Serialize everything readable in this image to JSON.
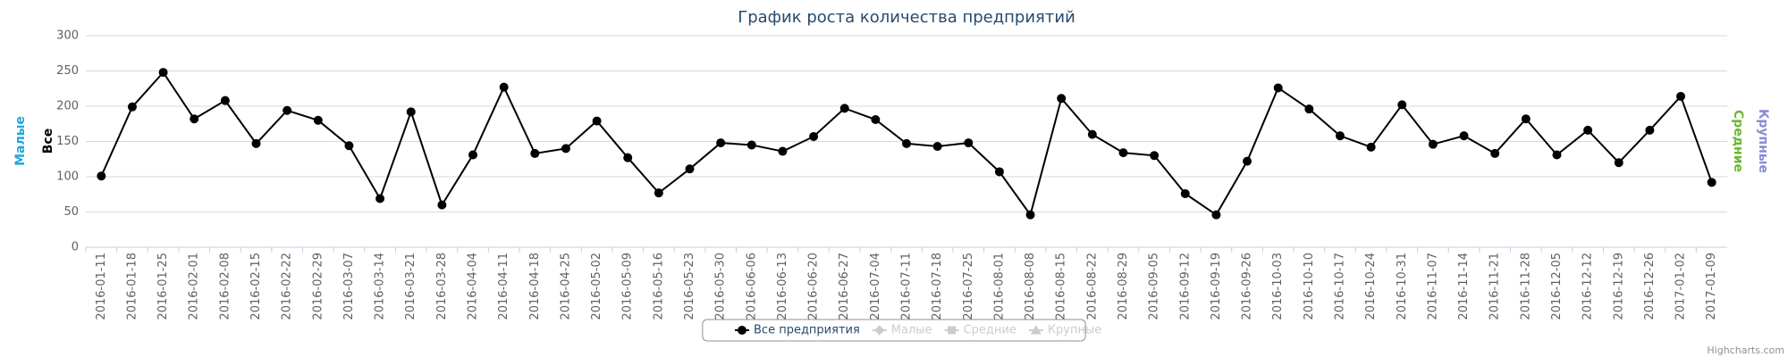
{
  "chart_data": {
    "type": "line",
    "title": "График роста количества предприятий",
    "categories": [
      "2016-01-11",
      "2016-01-18",
      "2016-01-25",
      "2016-02-01",
      "2016-02-08",
      "2016-02-15",
      "2016-02-22",
      "2016-02-29",
      "2016-03-07",
      "2016-03-14",
      "2016-03-21",
      "2016-03-28",
      "2016-04-04",
      "2016-04-11",
      "2016-04-18",
      "2016-04-25",
      "2016-05-02",
      "2016-05-09",
      "2016-05-16",
      "2016-05-23",
      "2016-05-30",
      "2016-06-06",
      "2016-06-13",
      "2016-06-20",
      "2016-06-27",
      "2016-07-04",
      "2016-07-11",
      "2016-07-18",
      "2016-07-25",
      "2016-08-01",
      "2016-08-08",
      "2016-08-15",
      "2016-08-22",
      "2016-08-29",
      "2016-09-05",
      "2016-09-12",
      "2016-09-19",
      "2016-09-26",
      "2016-10-03",
      "2016-10-10",
      "2016-10-17",
      "2016-10-24",
      "2016-10-31",
      "2016-11-07",
      "2016-11-14",
      "2016-11-21",
      "2016-11-28",
      "2016-12-05",
      "2016-12-12",
      "2016-12-19",
      "2016-12-26",
      "2017-01-02",
      "2017-01-09"
    ],
    "series": [
      {
        "name": "Все предприятия",
        "color": "#000000",
        "marker": "circle",
        "visible": true,
        "values": [
          101,
          199,
          248,
          182,
          208,
          147,
          194,
          180,
          144,
          69,
          192,
          60,
          131,
          227,
          133,
          140,
          179,
          127,
          77,
          111,
          148,
          145,
          136,
          157,
          197,
          181,
          147,
          143,
          148,
          107,
          46,
          211,
          160,
          134,
          130,
          76,
          46,
          122,
          226,
          196,
          158,
          142,
          202,
          146,
          158,
          133,
          182,
          131,
          166,
          120,
          166,
          214,
          92
        ]
      },
      {
        "name": "Малые",
        "color": "#21a4dd",
        "marker": "diamond",
        "visible": false
      },
      {
        "name": "Средние",
        "color": "#6bb832",
        "marker": "square",
        "visible": false
      },
      {
        "name": "Крупные",
        "color": "#8a8ad6",
        "marker": "triangle",
        "visible": false
      }
    ],
    "y_axis_titles": [
      {
        "text": "Малые",
        "color": "#21a4dd"
      },
      {
        "text": "Все",
        "color": "#000000"
      }
    ],
    "y2_axis_titles": [
      {
        "text": "Средние",
        "color": "#6bb832"
      },
      {
        "text": "Крупные",
        "color": "#8a8ad6"
      }
    ],
    "ylim": [
      0,
      300
    ],
    "yticks": [
      0,
      50,
      100,
      150,
      200,
      250,
      300
    ],
    "grid": true,
    "legend": "bottom",
    "credits": "Highcharts.com"
  }
}
